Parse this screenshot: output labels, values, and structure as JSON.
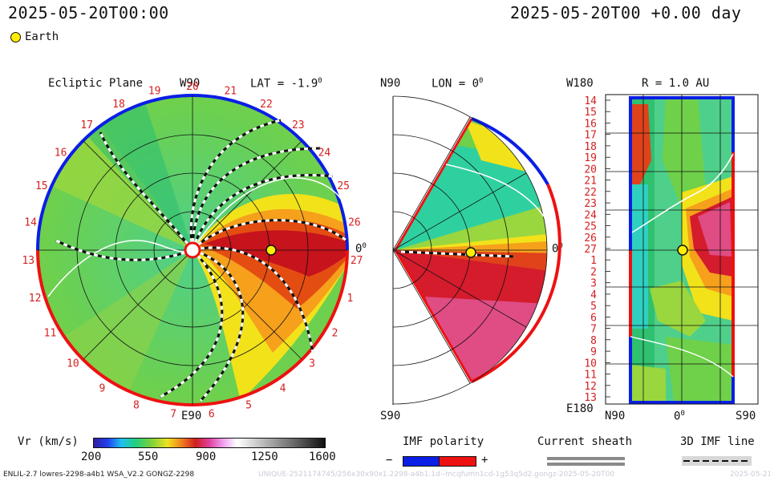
{
  "header": {
    "timestamp_left": "2025-05-20T00:00",
    "timestamp_right": "2025-05-20T00 +0.00 day",
    "legend_earth": "Earth"
  },
  "ecliptic_panel": {
    "title": "Ecliptic Plane",
    "top_label": "W90",
    "lat_label": "LAT = -1.9",
    "bottom_label": "E90",
    "right_label": "0",
    "carrington_ticks": [
      "20",
      "21",
      "22",
      "23",
      "24",
      "25",
      "26",
      "27",
      "1",
      "2",
      "3",
      "4",
      "5",
      "6",
      "7",
      "8",
      "9",
      "10",
      "11",
      "12",
      "13",
      "14",
      "15",
      "16",
      "17",
      "18",
      "19"
    ]
  },
  "meridional_panel": {
    "top_left_label": "N90",
    "lon_label": "LON = 0",
    "bottom_label": "S90",
    "right_label": "0"
  },
  "radial_panel": {
    "top_left_label": "W180",
    "r_label": "R = 1.0 AU",
    "bottom_left_label": "E180",
    "x_labels": [
      "N90",
      "0",
      "S90"
    ],
    "y_labels": [
      "14",
      "15",
      "16",
      "17",
      "18",
      "19",
      "20",
      "21",
      "22",
      "23",
      "24",
      "25",
      "26",
      "27",
      "1",
      "2",
      "3",
      "4",
      "5",
      "6",
      "7",
      "8",
      "9",
      "10",
      "11",
      "12",
      "13"
    ]
  },
  "colorbar": {
    "label": "Vr (km/s)",
    "ticks": [
      "200",
      "550",
      "900",
      "1250",
      "1600"
    ]
  },
  "imf_legend": {
    "title": "IMF polarity",
    "minus": "−",
    "plus": "+",
    "colors": {
      "negative": "#0a1ee6",
      "positive": "#ee1111"
    }
  },
  "current_sheath": {
    "title": "Current sheath"
  },
  "imf_line": {
    "title": "3D IMF line"
  },
  "footer": {
    "model_info": "ENLIL-2.7 lowres-2298-a4b1 WSA_V2.2 GONGZ-2298",
    "run_id": "UNIQUE-2521174745/256x30x90x1.2298-a4b1.1d--mcqfumn1cd-1g53q5d2.gongz-2025-05-20T00",
    "run_date": "2025-05-21"
  }
}
